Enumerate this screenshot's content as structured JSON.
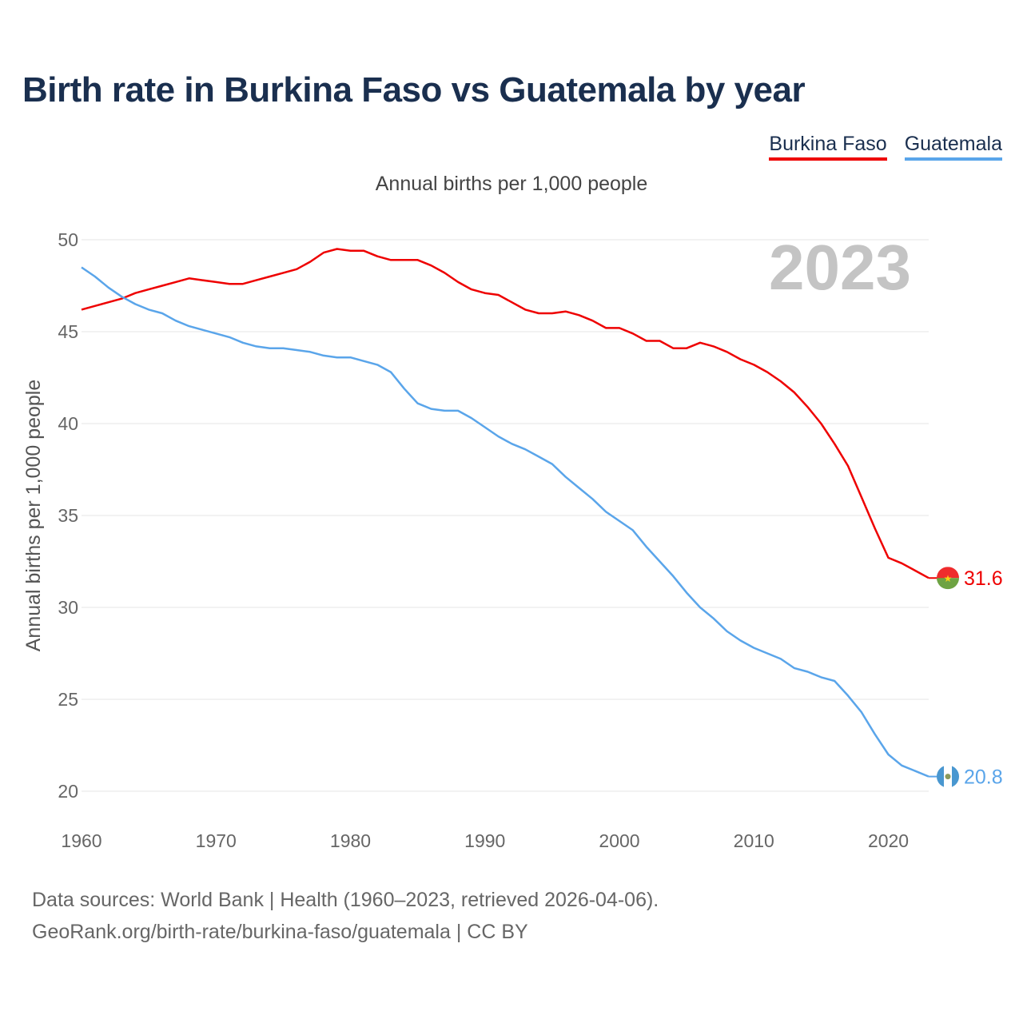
{
  "header": {
    "title": "Birth rate in Burkina Faso vs Guatemala by year",
    "subtitle": "Annual births per 1,000 people"
  },
  "legend": {
    "items": [
      {
        "label": "Burkina Faso",
        "color": "#ee0000"
      },
      {
        "label": "Guatemala",
        "color": "#5aa5ea"
      }
    ]
  },
  "footer": {
    "source_line1": "Data sources: World Bank | Health (1960–2023, retrieved 2026-04-06).",
    "source_line2": "GeoRank.org/birth-rate/burkina-faso/guatemala | CC BY"
  },
  "chart_data": {
    "type": "line",
    "title": "Birth rate in Burkina Faso vs Guatemala by year",
    "subtitle": "Annual births per 1,000 people",
    "xlabel": "",
    "ylabel": "Annual births per 1,000 people",
    "year_label": "2023",
    "xlim": [
      1960,
      2023
    ],
    "ylim": [
      20,
      50
    ],
    "x_ticks": [
      1960,
      1970,
      1980,
      1990,
      2000,
      2010,
      2020
    ],
    "y_ticks": [
      20,
      25,
      30,
      35,
      40,
      45,
      50
    ],
    "grid": true,
    "legend_position": "top-right",
    "x": [
      1960,
      1961,
      1962,
      1963,
      1964,
      1965,
      1966,
      1967,
      1968,
      1969,
      1970,
      1971,
      1972,
      1973,
      1974,
      1975,
      1976,
      1977,
      1978,
      1979,
      1980,
      1981,
      1982,
      1983,
      1984,
      1985,
      1986,
      1987,
      1988,
      1989,
      1990,
      1991,
      1992,
      1993,
      1994,
      1995,
      1996,
      1997,
      1998,
      1999,
      2000,
      2001,
      2002,
      2003,
      2004,
      2005,
      2006,
      2007,
      2008,
      2009,
      2010,
      2011,
      2012,
      2013,
      2014,
      2015,
      2016,
      2017,
      2018,
      2019,
      2020,
      2021,
      2022,
      2023
    ],
    "series": [
      {
        "name": "Burkina Faso",
        "color": "#ee0000",
        "end_label": "31.6",
        "values": [
          46.2,
          46.4,
          46.6,
          46.8,
          47.1,
          47.3,
          47.5,
          47.7,
          47.9,
          47.8,
          47.7,
          47.6,
          47.6,
          47.8,
          48.0,
          48.2,
          48.4,
          48.8,
          49.3,
          49.5,
          49.4,
          49.4,
          49.1,
          48.9,
          48.9,
          48.9,
          48.6,
          48.2,
          47.7,
          47.3,
          47.1,
          47.0,
          46.6,
          46.2,
          46.0,
          46.0,
          46.1,
          45.9,
          45.6,
          45.2,
          45.2,
          44.9,
          44.5,
          44.5,
          44.1,
          44.1,
          44.4,
          44.2,
          43.9,
          43.5,
          43.2,
          42.8,
          42.3,
          41.7,
          40.9,
          40.0,
          38.9,
          37.7,
          36.0,
          34.3,
          32.7,
          32.4,
          32.0,
          31.6
        ]
      },
      {
        "name": "Guatemala",
        "color": "#5aa5ea",
        "end_label": "20.8",
        "values": [
          48.5,
          48.0,
          47.4,
          46.9,
          46.5,
          46.2,
          46.0,
          45.6,
          45.3,
          45.1,
          44.9,
          44.7,
          44.4,
          44.2,
          44.1,
          44.1,
          44.0,
          43.9,
          43.7,
          43.6,
          43.6,
          43.4,
          43.2,
          42.8,
          41.9,
          41.1,
          40.8,
          40.7,
          40.7,
          40.3,
          39.8,
          39.3,
          38.9,
          38.6,
          38.2,
          37.8,
          37.1,
          36.5,
          35.9,
          35.2,
          34.7,
          34.2,
          33.3,
          32.5,
          31.7,
          30.8,
          30.0,
          29.4,
          28.7,
          28.2,
          27.8,
          27.5,
          27.2,
          26.7,
          26.5,
          26.2,
          26.0,
          25.2,
          24.3,
          23.1,
          22.0,
          21.4,
          21.1,
          20.8
        ]
      }
    ]
  }
}
